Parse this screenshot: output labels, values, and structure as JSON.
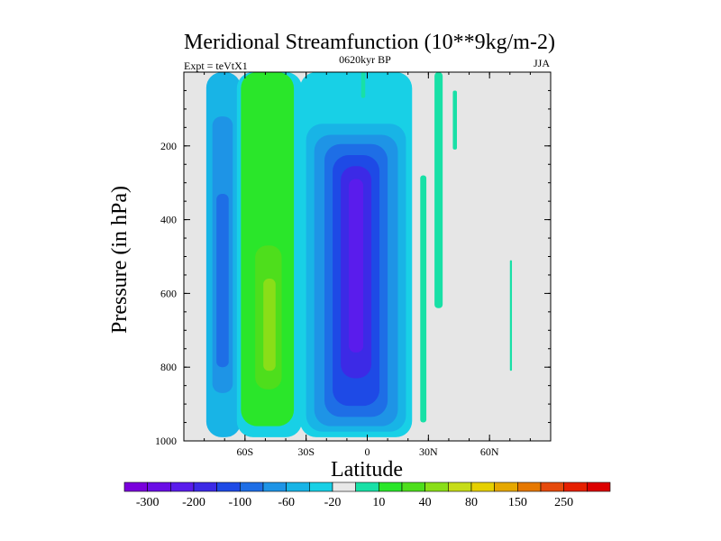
{
  "chart_data": {
    "type": "heatmap",
    "title": "Meridional Streamfunction (10**9kg/m-2)",
    "subtitle_left": "Expt = teVtX1",
    "subtitle_center": "0620kyr BP",
    "subtitle_right": "JJA",
    "xlabel": "Latitude",
    "ylabel": "Pressure (in hPa)",
    "xlim": [
      -90,
      90
    ],
    "ylim": [
      0,
      1000
    ],
    "y_inverted": true,
    "x_ticks": [
      {
        "value": -60,
        "label": "60S"
      },
      {
        "value": -30,
        "label": "30S"
      },
      {
        "value": 0,
        "label": "0"
      },
      {
        "value": 30,
        "label": "30N"
      },
      {
        "value": 60,
        "label": "60N"
      }
    ],
    "y_ticks": [
      {
        "value": 200,
        "label": "200"
      },
      {
        "value": 400,
        "label": "400"
      },
      {
        "value": 600,
        "label": "600"
      },
      {
        "value": 800,
        "label": "800"
      },
      {
        "value": 1000,
        "label": "1000"
      }
    ],
    "background_color": "#e6e6e6",
    "colorbar": {
      "colors": [
        "#7a00dc",
        "#6a0ee6",
        "#5a1cec",
        "#3c2ae6",
        "#1e4ae6",
        "#1e6ee6",
        "#1e94e6",
        "#18b4e6",
        "#18d0e6",
        "#e8e8e8",
        "#18e0a6",
        "#2ae62a",
        "#4ede1c",
        "#8ade18",
        "#c6dc18",
        "#e6d000",
        "#e6a800",
        "#e67800",
        "#e64a0c",
        "#e62000",
        "#dc0000"
      ],
      "labels": [
        {
          "after_index": 0,
          "label": "-300"
        },
        {
          "after_index": 2,
          "label": "-200"
        },
        {
          "after_index": 4,
          "label": "-100"
        },
        {
          "after_index": 6,
          "label": "-60"
        },
        {
          "after_index": 8,
          "label": "-20"
        },
        {
          "after_index": 10,
          "label": "10"
        },
        {
          "after_index": 12,
          "label": "40"
        },
        {
          "after_index": 14,
          "label": "80"
        },
        {
          "after_index": 16,
          "label": "150"
        },
        {
          "after_index": 18,
          "label": "250"
        }
      ]
    },
    "features": [
      {
        "name": "southern-cell-outer",
        "level_index": 7,
        "lat": [
          -79,
          -62
        ],
        "p": [
          0,
          990
        ]
      },
      {
        "name": "southern-cell-mid",
        "level_index": 6,
        "lat": [
          -76,
          -66
        ],
        "p": [
          120,
          870
        ]
      },
      {
        "name": "southern-cell-core",
        "level_index": 5,
        "lat": [
          -74,
          -68
        ],
        "p": [
          330,
          800
        ]
      },
      {
        "name": "positive-cell-outer",
        "level_index": 8,
        "lat": [
          -64,
          -32
        ],
        "p": [
          0,
          990
        ]
      },
      {
        "name": "positive-cell-mid",
        "level_index": 11,
        "lat": [
          -62,
          -36
        ],
        "p": [
          0,
          960
        ]
      },
      {
        "name": "positive-cell-inner",
        "level_index": 12,
        "lat": [
          -55,
          -42
        ],
        "p": [
          470,
          860
        ]
      },
      {
        "name": "positive-cell-core",
        "level_index": 13,
        "lat": [
          -51,
          -45
        ],
        "p": [
          560,
          810
        ]
      },
      {
        "name": "hadley-cell-1",
        "level_index": 8,
        "lat": [
          -33,
          22
        ],
        "p": [
          0,
          990
        ]
      },
      {
        "name": "hadley-cell-2",
        "level_index": 7,
        "lat": [
          -30,
          19
        ],
        "p": [
          140,
          975
        ]
      },
      {
        "name": "hadley-cell-3",
        "level_index": 6,
        "lat": [
          -26,
          15
        ],
        "p": [
          170,
          960
        ]
      },
      {
        "name": "hadley-cell-4",
        "level_index": 5,
        "lat": [
          -21,
          10
        ],
        "p": [
          195,
          935
        ]
      },
      {
        "name": "hadley-cell-5",
        "level_index": 4,
        "lat": [
          -17,
          6
        ],
        "p": [
          225,
          905
        ]
      },
      {
        "name": "hadley-cell-6",
        "level_index": 3,
        "lat": [
          -13,
          2
        ],
        "p": [
          255,
          830
        ]
      },
      {
        "name": "hadley-cell-core",
        "level_index": 2,
        "lat": [
          -9,
          -2
        ],
        "p": [
          290,
          760
        ]
      },
      {
        "name": "nh-streak-1",
        "level_index": 10,
        "lat": [
          26,
          29
        ],
        "p": [
          280,
          950
        ]
      },
      {
        "name": "nh-streak-2",
        "level_index": 10,
        "lat": [
          33,
          37
        ],
        "p": [
          0,
          640
        ]
      },
      {
        "name": "nh-streak-3",
        "level_index": 10,
        "lat": [
          42,
          44
        ],
        "p": [
          50,
          210
        ]
      },
      {
        "name": "nh-streak-4",
        "level_index": 10,
        "lat": [
          -3,
          -1
        ],
        "p": [
          0,
          70
        ]
      },
      {
        "name": "nh-streak-5",
        "level_index": 10,
        "lat": [
          70,
          71
        ],
        "p": [
          510,
          810
        ]
      }
    ]
  }
}
